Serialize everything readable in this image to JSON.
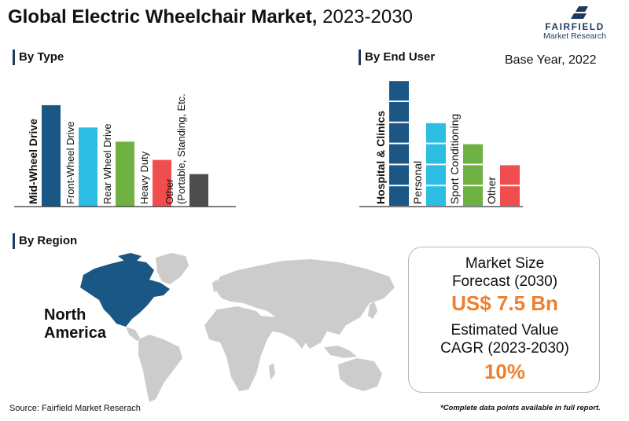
{
  "header": {
    "title_bold": "Global Electric Wheelchair Market,",
    "title_years": " 2023-2030",
    "base_year": "Base Year, 2022"
  },
  "logo": {
    "name": "FAIRFIELD",
    "subtitle": "Market Research"
  },
  "sections": {
    "type": "By Type",
    "end_user": "By End User",
    "region": "By Region"
  },
  "chart_data": [
    {
      "type": "bar",
      "title": "By Type",
      "categories": [
        "Mid-Wheel Drive",
        "Front-Wheel Drive",
        "Rear Wheel Drive",
        "Heavy Duty",
        "Other (Portable, Standing, Etc."
      ],
      "category_lines": [
        [
          "Mid-Wheel Drive"
        ],
        [
          "Front-Wheel Drive"
        ],
        [
          "Rear Wheel Drive"
        ],
        [
          "Heavy Duty"
        ],
        [
          "Other",
          "(Portable, Standing, Etc."
        ]
      ],
      "values": [
        5,
        3.9,
        3.2,
        2.3,
        1.6
      ],
      "ylim": [
        0,
        5.5
      ],
      "highlight_index": 0,
      "colors": [
        "#1b5785",
        "#2bbde3",
        "#6fb142",
        "#f04e4e",
        "#4d4d4d"
      ]
    },
    {
      "type": "bar",
      "title": "By End User",
      "categories": [
        "Hospital & Clinics",
        "Personal",
        "Sport Conditioning",
        "Other"
      ],
      "values": [
        6,
        4,
        3,
        2
      ],
      "ylim": [
        0,
        6
      ],
      "highlight_index": 0,
      "colors": [
        "#1b5785",
        "#2bbde3",
        "#6fb142",
        "#f04e4e"
      ]
    }
  ],
  "region": {
    "highlight": "North America",
    "highlight_color": "#1b5785",
    "land_color": "#cccccc"
  },
  "kpi": {
    "market_size_label_1": "Market Size",
    "market_size_label_2": "Forecast (2030)",
    "market_size_value": "US$ 7.5 Bn",
    "cagr_label_1": "Estimated Value",
    "cagr_label_2": "CAGR (2023-2030)",
    "cagr_value": "10%"
  },
  "footer": {
    "source": "Source: Fairfield Market Reserach",
    "note": "*Complete data points available in full report."
  }
}
